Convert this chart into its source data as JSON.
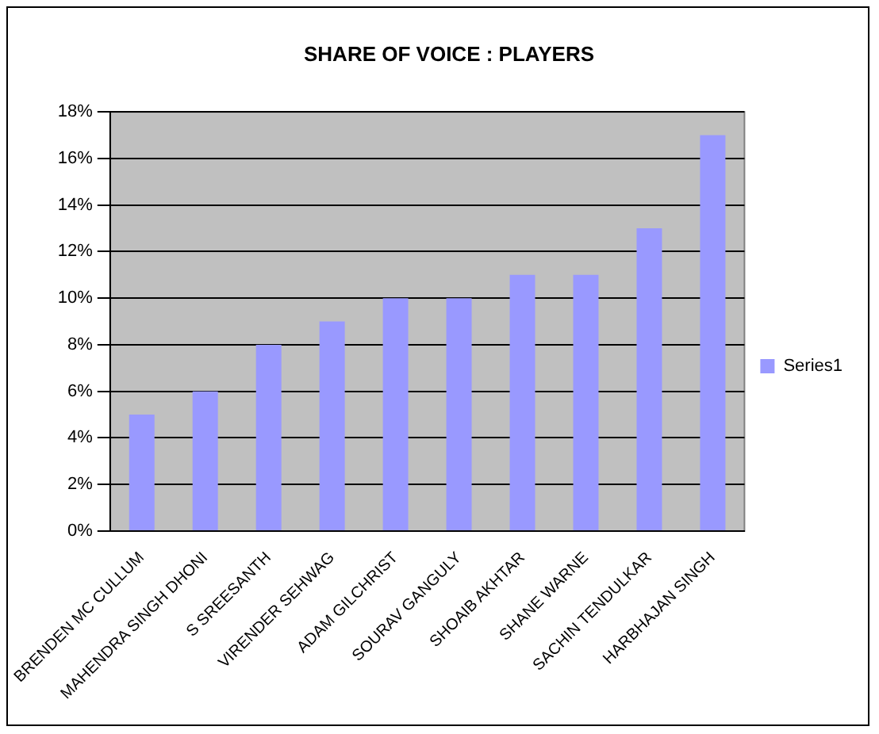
{
  "chart_data": {
    "type": "bar",
    "title": "SHARE OF VOICE : PLAYERS",
    "categories": [
      "BRENDEN MC CULLUM",
      "MAHENDRA SINGH DHONI",
      "S SREESANTH",
      "VIRENDER SEHWAG",
      "ADAM GILCHRIST",
      "SOURAV GANGULY",
      "SHOAIB AKHTAR",
      "SHANE WARNE",
      "SACHIN TENDULKAR",
      "HARBHAJAN SINGH"
    ],
    "series": [
      {
        "name": "Series1",
        "color": "#9999ff",
        "values": [
          5,
          6,
          8,
          9,
          10,
          10,
          11,
          11,
          13,
          17
        ]
      }
    ],
    "ylim": [
      0,
      18
    ],
    "yticks": [
      {
        "value": 0,
        "label": "0%"
      },
      {
        "value": 2,
        "label": "2%"
      },
      {
        "value": 4,
        "label": "4%"
      },
      {
        "value": 6,
        "label": "6%"
      },
      {
        "value": 8,
        "label": "8%"
      },
      {
        "value": 10,
        "label": "10%"
      },
      {
        "value": 12,
        "label": "12%"
      },
      {
        "value": 14,
        "label": "14%"
      },
      {
        "value": 16,
        "label": "16%"
      },
      {
        "value": 18,
        "label": "18%"
      }
    ],
    "grid": "y",
    "legend": "right"
  }
}
